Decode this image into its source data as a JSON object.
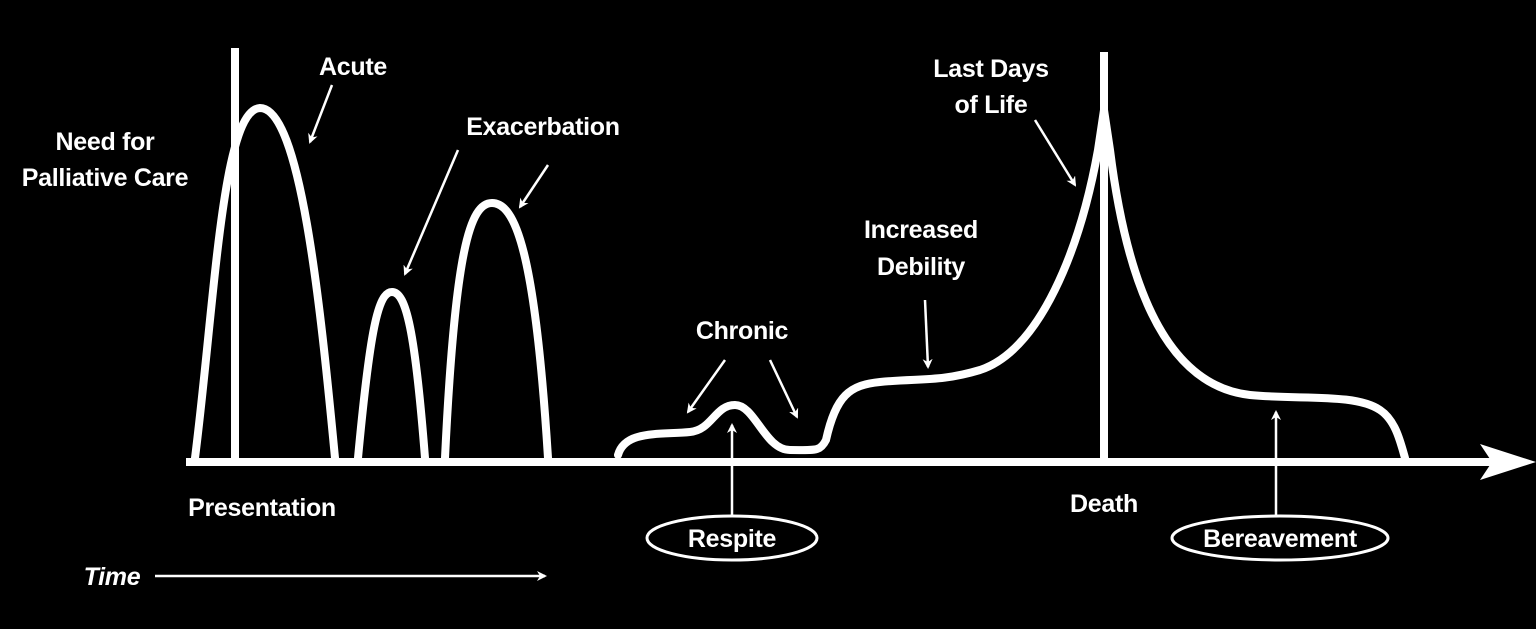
{
  "y_axis_label": [
    "Need for",
    "Palliative Care"
  ],
  "x_axis_label": "Time",
  "phases": {
    "acute": [
      "Acute"
    ],
    "exacerbation": [
      "Exacerbation"
    ],
    "chronic": [
      "Chronic"
    ],
    "increased_debility": [
      "Increased",
      "Debility"
    ],
    "last_days": [
      "Last Days",
      "of Life"
    ]
  },
  "milestones": {
    "presentation": "Presentation",
    "death": "Death"
  },
  "boxed": {
    "respite": "Respite",
    "bereavement": "Bereavement"
  }
}
